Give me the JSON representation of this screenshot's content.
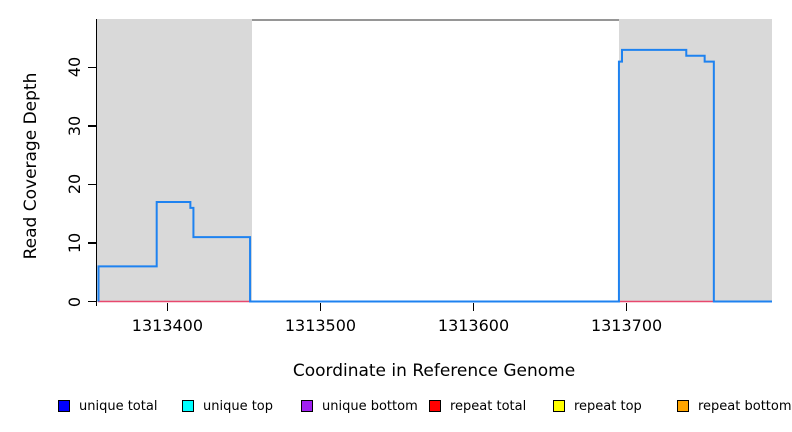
{
  "chart_data": {
    "type": "line",
    "title": "",
    "xlabel": "Coordinate in Reference Genome",
    "ylabel": "Read Coverage Depth",
    "xlim": [
      1313354,
      1313795
    ],
    "ylim": [
      0,
      48.2
    ],
    "x_ticks": [
      1313400,
      1313500,
      1313600,
      1313700
    ],
    "y_ticks": [
      0,
      10,
      20,
      30,
      40
    ],
    "grid": false,
    "legend_position": "bottom",
    "repeat_regions": [
      {
        "start": 1313354,
        "end": 1313455
      },
      {
        "start": 1313695,
        "end": 1313795
      }
    ],
    "coverage_steps": [
      {
        "from": 1313355,
        "to": 1313393,
        "depth": 6
      },
      {
        "from": 1313393,
        "to": 1313415,
        "depth": 17
      },
      {
        "from": 1313415,
        "to": 1313417,
        "depth": 16
      },
      {
        "from": 1313417,
        "to": 1313454,
        "depth": 11
      },
      {
        "from": 1313454,
        "to": 1313695,
        "depth": 0
      },
      {
        "from": 1313695,
        "to": 1313697,
        "depth": 41
      },
      {
        "from": 1313697,
        "to": 1313739,
        "depth": 43
      },
      {
        "from": 1313739,
        "to": 1313751,
        "depth": 42
      },
      {
        "from": 1313751,
        "to": 1313757,
        "depth": 41
      },
      {
        "from": 1313757,
        "to": 1313795,
        "depth": 0
      }
    ],
    "zero_line_depth": 0
  },
  "colors": {
    "coverage_line": "#1e82f0",
    "zero_line": "#e8486e",
    "region_fill": "#d9d9d9",
    "top_border": "#969696",
    "axis": "#000000"
  },
  "legend": {
    "items": [
      {
        "label": "unique total",
        "color": "#0000ff"
      },
      {
        "label": "unique top",
        "color": "#00ffff"
      },
      {
        "label": "unique bottom",
        "color": "#a020f0"
      },
      {
        "label": "repeat total",
        "color": "#ff0000"
      },
      {
        "label": "repeat top",
        "color": "#ffff00"
      },
      {
        "label": "repeat bottom",
        "color": "#ffa500"
      }
    ]
  }
}
